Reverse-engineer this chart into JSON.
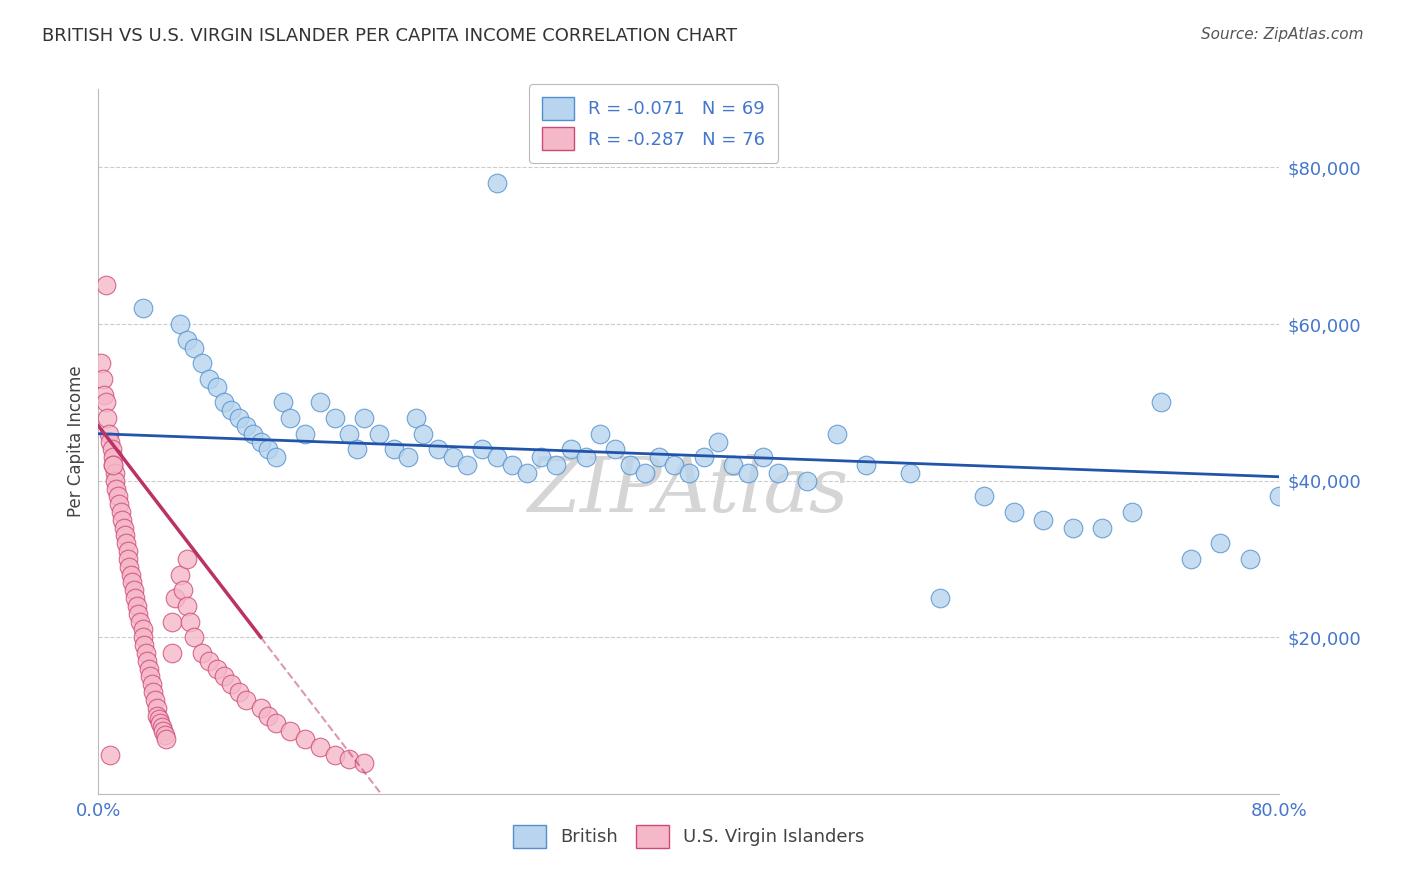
{
  "title": "BRITISH VS U.S. VIRGIN ISLANDER PER CAPITA INCOME CORRELATION CHART",
  "source": "Source: ZipAtlas.com",
  "ylabel": "Per Capita Income",
  "xlim": [
    0.0,
    0.8
  ],
  "ylim": [
    0,
    90000
  ],
  "british_color": "#b8d4ee",
  "british_edge": "#5090d0",
  "usvi_color": "#f5b8c8",
  "usvi_edge": "#d04878",
  "trendline_blue": "#2255aa",
  "trendline_pink": "#bb3366",
  "R_british": -0.071,
  "N_british": 69,
  "R_usvi": -0.287,
  "N_usvi": 76,
  "background_color": "#ffffff",
  "grid_color": "#cccccc",
  "title_color": "#333333",
  "right_label_color": "#4477cc",
  "watermark": "ZIPAtlas",
  "watermark_color": "#d5d5d5",
  "source_color": "#555555",
  "brit_x": [
    0.03,
    0.055,
    0.06,
    0.065,
    0.07,
    0.075,
    0.08,
    0.085,
    0.09,
    0.095,
    0.1,
    0.105,
    0.11,
    0.115,
    0.12,
    0.125,
    0.13,
    0.14,
    0.15,
    0.16,
    0.17,
    0.175,
    0.18,
    0.19,
    0.2,
    0.21,
    0.215,
    0.22,
    0.23,
    0.24,
    0.25,
    0.26,
    0.27,
    0.28,
    0.29,
    0.3,
    0.31,
    0.32,
    0.33,
    0.34,
    0.35,
    0.36,
    0.37,
    0.38,
    0.39,
    0.4,
    0.41,
    0.42,
    0.43,
    0.44,
    0.45,
    0.46,
    0.48,
    0.5,
    0.52,
    0.55,
    0.57,
    0.6,
    0.62,
    0.64,
    0.66,
    0.68,
    0.7,
    0.72,
    0.74,
    0.76,
    0.78,
    0.8,
    0.27
  ],
  "brit_y": [
    62000,
    60000,
    58000,
    57000,
    55000,
    53000,
    52000,
    50000,
    49000,
    48000,
    47000,
    46000,
    45000,
    44000,
    43000,
    50000,
    48000,
    46000,
    50000,
    48000,
    46000,
    44000,
    48000,
    46000,
    44000,
    43000,
    48000,
    46000,
    44000,
    43000,
    42000,
    44000,
    43000,
    42000,
    41000,
    43000,
    42000,
    44000,
    43000,
    46000,
    44000,
    42000,
    41000,
    43000,
    42000,
    41000,
    43000,
    45000,
    42000,
    41000,
    43000,
    41000,
    40000,
    46000,
    42000,
    41000,
    25000,
    38000,
    36000,
    35000,
    34000,
    34000,
    36000,
    50000,
    30000,
    32000,
    30000,
    38000,
    78000
  ],
  "usvi_x": [
    0.002,
    0.003,
    0.004,
    0.005,
    0.006,
    0.007,
    0.008,
    0.009,
    0.01,
    0.01,
    0.011,
    0.011,
    0.012,
    0.013,
    0.014,
    0.015,
    0.016,
    0.017,
    0.018,
    0.019,
    0.02,
    0.02,
    0.021,
    0.022,
    0.023,
    0.024,
    0.025,
    0.026,
    0.027,
    0.028,
    0.03,
    0.03,
    0.031,
    0.032,
    0.033,
    0.034,
    0.035,
    0.036,
    0.037,
    0.038,
    0.04,
    0.04,
    0.041,
    0.042,
    0.043,
    0.044,
    0.045,
    0.046,
    0.05,
    0.05,
    0.052,
    0.055,
    0.057,
    0.06,
    0.062,
    0.065,
    0.07,
    0.075,
    0.08,
    0.085,
    0.09,
    0.095,
    0.1,
    0.11,
    0.115,
    0.12,
    0.13,
    0.14,
    0.15,
    0.16,
    0.17,
    0.18,
    0.06,
    0.01,
    0.005,
    0.008
  ],
  "usvi_y": [
    55000,
    53000,
    51000,
    50000,
    48000,
    46000,
    45000,
    44000,
    43000,
    42000,
    41000,
    40000,
    39000,
    38000,
    37000,
    36000,
    35000,
    34000,
    33000,
    32000,
    31000,
    30000,
    29000,
    28000,
    27000,
    26000,
    25000,
    24000,
    23000,
    22000,
    21000,
    20000,
    19000,
    18000,
    17000,
    16000,
    15000,
    14000,
    13000,
    12000,
    11000,
    10000,
    9500,
    9000,
    8500,
    8000,
    7500,
    7000,
    18000,
    22000,
    25000,
    28000,
    26000,
    24000,
    22000,
    20000,
    18000,
    17000,
    16000,
    15000,
    14000,
    13000,
    12000,
    11000,
    10000,
    9000,
    8000,
    7000,
    6000,
    5000,
    4500,
    4000,
    30000,
    42000,
    65000,
    5000
  ]
}
